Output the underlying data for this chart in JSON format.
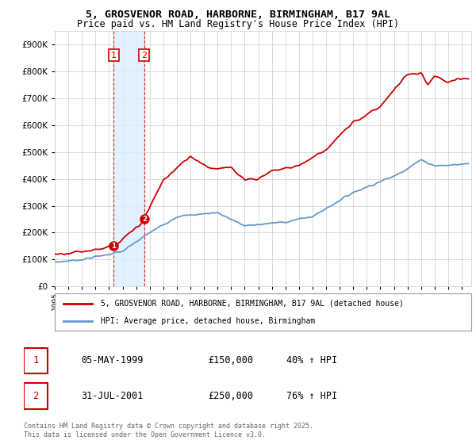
{
  "title": "5, GROSVENOR ROAD, HARBORNE, BIRMINGHAM, B17 9AL",
  "subtitle": "Price paid vs. HM Land Registry's House Price Index (HPI)",
  "title_fontsize": 9.5,
  "subtitle_fontsize": 8.5,
  "red_label": "5, GROSVENOR ROAD, HARBORNE, BIRMINGHAM, B17 9AL (detached house)",
  "blue_label": "HPI: Average price, detached house, Birmingham",
  "sale1_date": "05-MAY-1999",
  "sale1_price": 150000,
  "sale1_hpi": "40%",
  "sale2_date": "31-JUL-2001",
  "sale2_price": 250000,
  "sale2_hpi": "76%",
  "footer": "Contains HM Land Registry data © Crown copyright and database right 2025.\nThis data is licensed under the Open Government Licence v3.0.",
  "red_color": "#cc0000",
  "blue_color": "#6699cc",
  "shading_color": "#ddeeff",
  "dashed_color": "#dd2222",
  "grid_color": "#cccccc",
  "ylim": [
    0,
    950000
  ],
  "yticks": [
    0,
    100000,
    200000,
    300000,
    400000,
    500000,
    600000,
    700000,
    800000,
    900000
  ],
  "sale1_year": 1999.35,
  "sale2_year": 2001.58
}
